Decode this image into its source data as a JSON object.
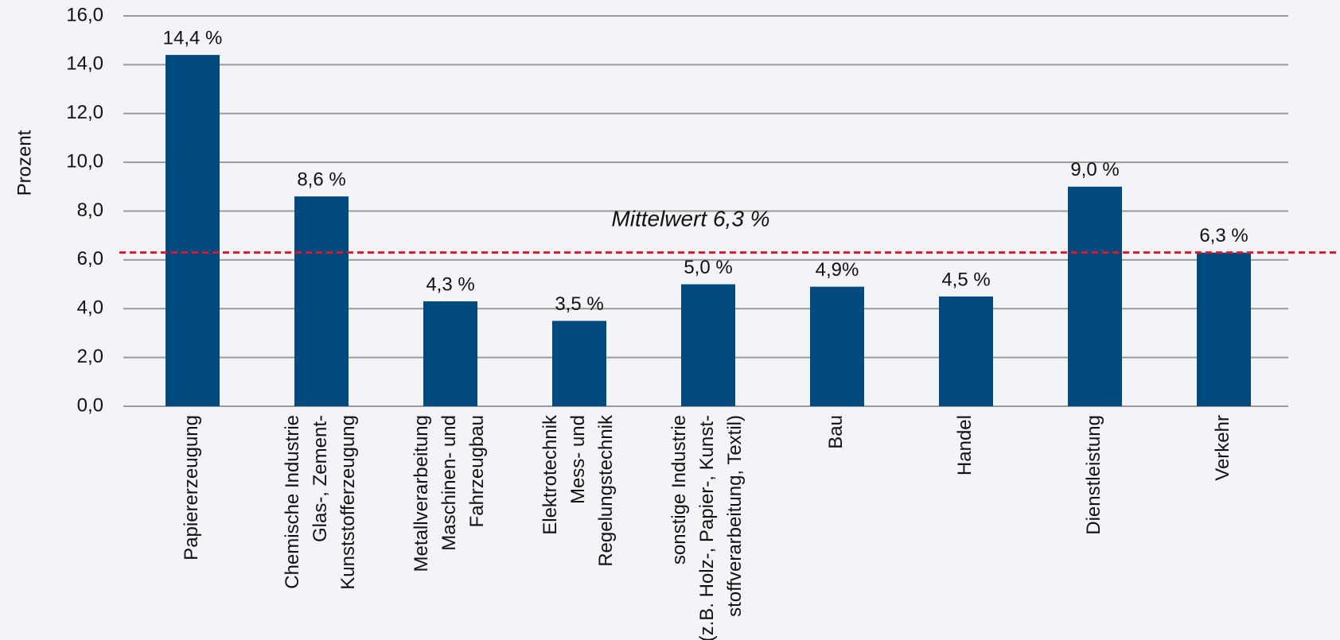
{
  "chart_data": {
    "type": "bar",
    "y_label": "Prozent",
    "categories": [
      "Papiererzeugung",
      "Chemische Industrie\nGlas-, Zement-\nKunststofferzeugung",
      "Metallverarbeitung\nMaschinen- und\nFahrzeugbau",
      "Elektrotechnik\nMess- und\nRegelungstechnik",
      "sonstige Industrie\n(z.B. Holz-, Papier-, Kunst-\nstoffverarbeitung, Textil)",
      "Bau",
      "Handel",
      "Dienstleistung",
      "Verkehr"
    ],
    "values": [
      14.4,
      8.6,
      4.3,
      3.5,
      5.0,
      4.9,
      4.5,
      9.0,
      6.3
    ],
    "value_labels": [
      "14,4 %",
      "8,6 %",
      "4,3 %",
      "3,5 %",
      "5,0 %",
      "4,9%",
      "4,5 %",
      "9,0 %",
      "6,3 %"
    ],
    "color": "#004a7f",
    "ylim": [
      0,
      16
    ],
    "yticks": [
      {
        "value": 0,
        "label": "0,0"
      },
      {
        "value": 2,
        "label": "2,0"
      },
      {
        "value": 4,
        "label": "4,0"
      },
      {
        "value": 6,
        "label": "6,0"
      },
      {
        "value": 8,
        "label": "8,0"
      },
      {
        "value": 10,
        "label": "10,0"
      },
      {
        "value": 12,
        "label": "12,0"
      },
      {
        "value": 14,
        "label": "14,0"
      },
      {
        "value": 16,
        "label": "16,0"
      }
    ],
    "grid": true,
    "reference_line": {
      "value": 6.3,
      "label": "Mittelwert 6,3 %",
      "color": "#e0162b"
    }
  }
}
